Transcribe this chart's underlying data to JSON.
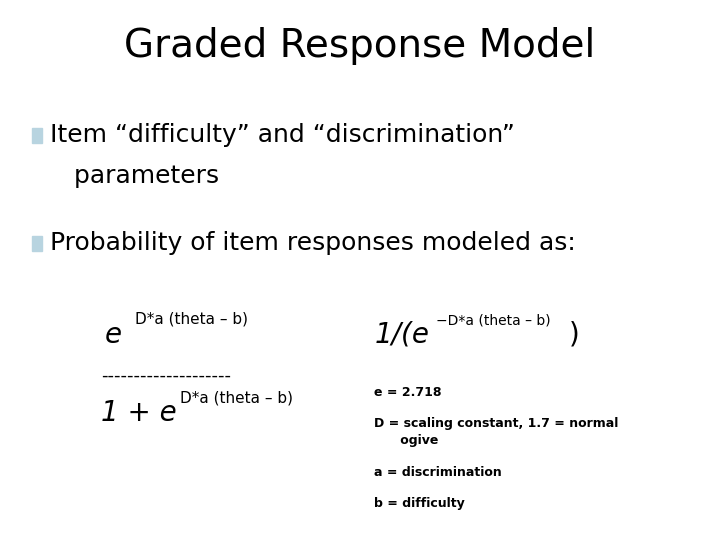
{
  "title": "Graded Response Model",
  "title_fontsize": 28,
  "title_font": "Segoe Print",
  "background_color": "#ffffff",
  "bullet_color": "#b8d4e0",
  "bullet1_line1": "Item “difficulty” and “discrimination”",
  "bullet1_line2": "   parameters",
  "bullet2": "Probability of item responses modeled as:",
  "bullet_fontsize": 18,
  "bullet_font": "Courier New",
  "formula_dashes": "--------------------",
  "formula_fontsize_large": 20,
  "formula_fontsize_small": 11,
  "formula_font": "Courier New",
  "note_fontsize": 9,
  "note_font": "Courier New",
  "notes": [
    "e = 2.718",
    "D = scaling constant, 1.7 = normal\n      ogive",
    "a = discrimination",
    "b = difficulty"
  ]
}
